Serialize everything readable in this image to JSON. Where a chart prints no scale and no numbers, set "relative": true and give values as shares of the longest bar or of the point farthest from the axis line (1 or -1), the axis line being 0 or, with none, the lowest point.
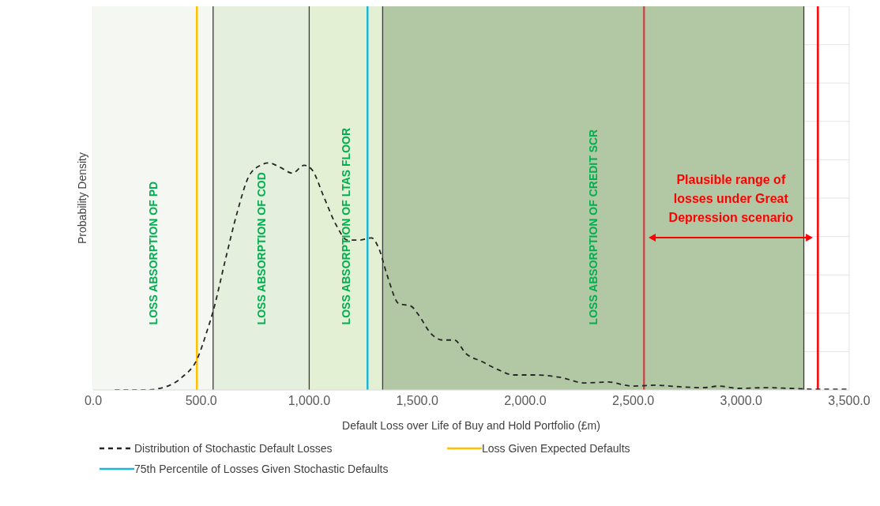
{
  "chart_data": {
    "type": "line",
    "relative": true,
    "xlabel": "Default Loss over Life of Buy and Hold Portfolio (£m)",
    "ylabel": "Probability Density",
    "xlim": [
      0,
      3500
    ],
    "xticks": [
      {
        "value": 0,
        "label": "0.0"
      },
      {
        "value": 500,
        "label": "500.0"
      },
      {
        "value": 1000,
        "label": "1,000.0"
      },
      {
        "value": 1500,
        "label": "1,500.0"
      },
      {
        "value": 2000,
        "label": "2,000.0"
      },
      {
        "value": 2500,
        "label": "2,500.0"
      },
      {
        "value": 3000,
        "label": "3,000.0"
      },
      {
        "value": 3500,
        "label": "3,500.0"
      }
    ],
    "series": [
      {
        "name": "Distribution of Stochastic Default Losses",
        "color": "#262626",
        "line_style": "dashed",
        "x": [
          100,
          245,
          336,
          410,
          483,
          527,
          556,
          611,
          666,
          720,
          775,
          812,
          867,
          922,
          977,
          1013,
          1068,
          1123,
          1178,
          1233,
          1288,
          1324,
          1361,
          1415,
          1470,
          1507,
          1562,
          1617,
          1672,
          1726,
          1800,
          1873,
          1946,
          2056,
          2165,
          2275,
          2385,
          2494,
          2604,
          2714,
          2824,
          2897,
          2988,
          3116,
          3226,
          3336,
          3500
        ],
        "values": [
          0,
          0,
          0.014,
          0.055,
          0.14,
          0.26,
          0.35,
          0.57,
          0.78,
          0.94,
          0.99,
          1,
          0.98,
          0.955,
          0.99,
          0.97,
          0.85,
          0.73,
          0.66,
          0.66,
          0.67,
          0.62,
          0.505,
          0.38,
          0.37,
          0.33,
          0.25,
          0.22,
          0.22,
          0.16,
          0.125,
          0.09,
          0.066,
          0.066,
          0.055,
          0.031,
          0.035,
          0.017,
          0.021,
          0.014,
          0.01,
          0.017,
          0.007,
          0.01,
          0.007,
          0.003,
          0.003
        ]
      }
    ],
    "bands": [
      {
        "axis": "x",
        "from": 0,
        "to": 555,
        "label": "LOSS ABSORPTION OF PD",
        "color": "#f5f8f2"
      },
      {
        "axis": "x",
        "from": 555,
        "to": 1000,
        "label": "LOSS ABSORPTION OF COD",
        "color": "#e5efde"
      },
      {
        "axis": "x",
        "from": 1000,
        "to": 1340,
        "label": "LOSS ABSORPTION OF LTAS FLOOR",
        "color": "#e3f0d4"
      },
      {
        "axis": "x",
        "from": 1340,
        "to": 3290,
        "label": "LOSS ABSORPTION OF CREDIT SCR",
        "color": "#b2c7a4"
      }
    ],
    "ref_lines": [
      {
        "axis": "x",
        "value": 480,
        "label": "Loss Given Expected Defaults",
        "color": "#ffc000"
      },
      {
        "axis": "x",
        "value": 1270,
        "label": "75th Percentile of Losses Given Stochastic Defaults",
        "color": "#1fb6d6"
      },
      {
        "axis": "x",
        "value": 2550,
        "color": "#c0504d"
      },
      {
        "axis": "x",
        "value": 3355,
        "color": "#ff0000"
      }
    ],
    "annotations": [
      "Plausible range of losses under Great Depression scenario"
    ],
    "grid": true,
    "legend": "bottom",
    "marker": "none"
  }
}
